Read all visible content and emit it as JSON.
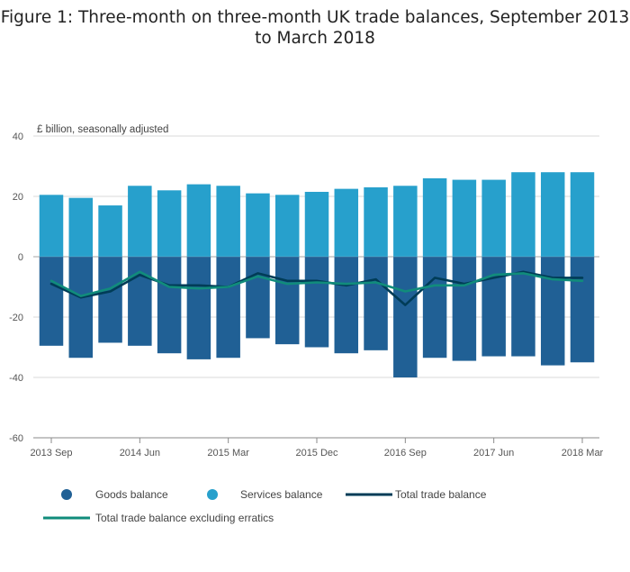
{
  "title": "Figure 1: Three-month on three-month UK trade balances, September 2013 to March 2018",
  "chart_data": {
    "type": "bar",
    "title": "Figure 1: Three-month on three-month UK trade balances, September 2013 to March 2018",
    "ylabel": "£ billion, seasonally adjusted",
    "xlabel": "",
    "ylim": [
      -60,
      40
    ],
    "yticks": [
      40,
      20,
      0,
      -20,
      -40,
      -60
    ],
    "x_tick_labels": [
      "2013 Sep",
      "2014 Jun",
      "2015 Mar",
      "2015 Dec",
      "2016 Sep",
      "2017 Jun",
      "2018 Mar"
    ],
    "x_tick_indices": [
      0,
      3,
      6,
      9,
      12,
      15,
      18
    ],
    "categories": [
      "2013 Sep",
      "2013 Dec",
      "2014 Mar",
      "2014 Jun",
      "2014 Sep",
      "2014 Dec",
      "2015 Mar",
      "2015 Jun",
      "2015 Sep",
      "2015 Dec",
      "2016 Mar",
      "2016 Jun",
      "2016 Sep",
      "2016 Dec",
      "2017 Mar",
      "2017 Jun",
      "2017 Sep",
      "2017 Dec",
      "2018 Mar"
    ],
    "series": [
      {
        "name": "Goods balance",
        "kind": "bar",
        "color": "#206095",
        "values": [
          -29.5,
          -33.5,
          -28.5,
          -29.5,
          -32,
          -34,
          -33.5,
          -27,
          -29,
          -30,
          -32,
          -31,
          -40,
          -33.5,
          -34.5,
          -33,
          -33,
          -36,
          -35
        ]
      },
      {
        "name": "Services balance",
        "kind": "bar",
        "color": "#27a0cc",
        "values": [
          20.5,
          19.5,
          17,
          23.5,
          22,
          24,
          23.5,
          21,
          20.5,
          21.5,
          22.5,
          23,
          23.5,
          26,
          25.5,
          25.5,
          28,
          28,
          28
        ]
      },
      {
        "name": "Total trade balance",
        "kind": "line",
        "color": "#003c57",
        "values": [
          -9,
          -13.5,
          -11.5,
          -6,
          -9.5,
          -9.5,
          -10,
          -5.5,
          -8,
          -8,
          -9.5,
          -7.5,
          -16,
          -7,
          -9,
          -7,
          -5,
          -7,
          -7
        ]
      },
      {
        "name": "Total trade balance excluding erratics",
        "kind": "line",
        "color": "#118c7b",
        "values": [
          -8,
          -13,
          -10.5,
          -5,
          -10,
          -10.5,
          -10,
          -6.5,
          -9,
          -8.5,
          -9,
          -8.5,
          -11.5,
          -9.5,
          -9.5,
          -6,
          -5.5,
          -7.5,
          -8
        ]
      }
    ],
    "legend_position": "bottom-left",
    "grid": true
  }
}
